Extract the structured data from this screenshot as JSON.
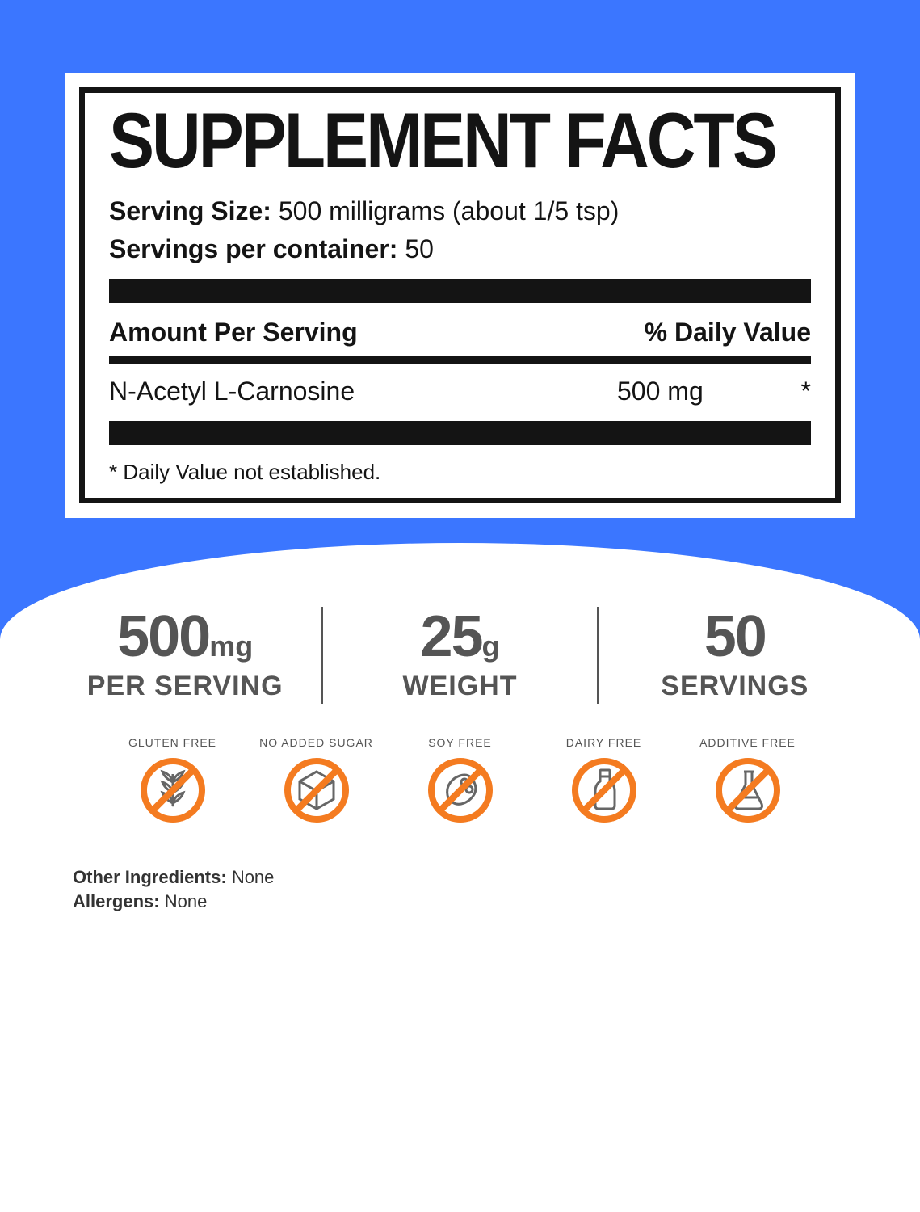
{
  "colors": {
    "background_blue": "#3b76ff",
    "panel_white": "#ffffff",
    "ink": "#141414",
    "stat_grey": "#555555",
    "badge_orange": "#f47b20",
    "icon_grey": "#666666"
  },
  "supplement_panel": {
    "title": "SUPPLEMENT FACTS",
    "serving_size_label": "Serving Size:",
    "serving_size_value": "500 milligrams (about 1/5 tsp)",
    "servings_per_container_label": "Servings per container:",
    "servings_per_container_value": "50",
    "col_amount_label": "Amount Per Serving",
    "col_dv_label": "% Daily Value",
    "rows": [
      {
        "name": "N-Acetyl L-Carnosine",
        "amount": "500 mg",
        "dv": "*"
      }
    ],
    "footnote": "* Daily Value not established."
  },
  "stats": [
    {
      "value": "500",
      "unit": "mg",
      "label": "PER SERVING"
    },
    {
      "value": "25",
      "unit": "g",
      "label": "WEIGHT"
    },
    {
      "value": "50",
      "unit": "",
      "label": "SERVINGS"
    }
  ],
  "badges": [
    {
      "label": "GLUTEN FREE",
      "icon": "wheat"
    },
    {
      "label": "NO ADDED SUGAR",
      "icon": "cube"
    },
    {
      "label": "SOY FREE",
      "icon": "bean"
    },
    {
      "label": "DAIRY FREE",
      "icon": "bottle"
    },
    {
      "label": "ADDITIVE FREE",
      "icon": "flask"
    }
  ],
  "footer": {
    "other_ingredients_label": "Other Ingredients:",
    "other_ingredients_value": "None",
    "allergens_label": "Allergens:",
    "allergens_value": "None"
  }
}
